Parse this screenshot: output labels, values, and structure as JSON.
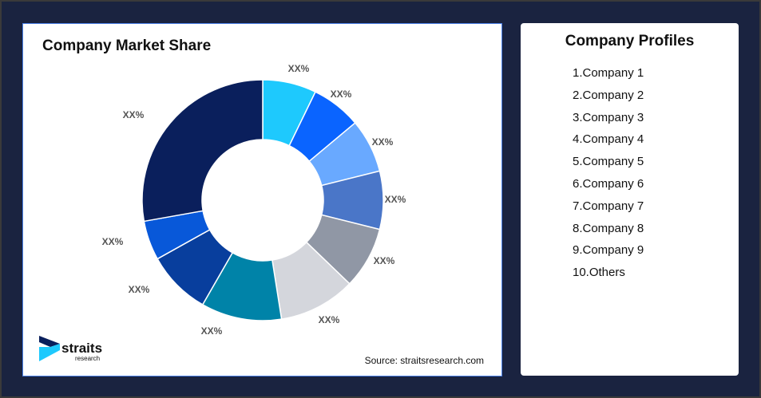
{
  "chart_data": {
    "type": "pie",
    "title": "Company Market Share",
    "donut": true,
    "data_labels": [
      "XX%",
      "XX%",
      "XX%",
      "XX%",
      "XX%",
      "XX%",
      "XX%",
      "XX%",
      "XX%",
      "XX%"
    ],
    "values_estimated_percent": [
      7.2,
      6.7,
      7.2,
      7.8,
      8.3,
      10.3,
      10.8,
      8.6,
      5.3,
      27.8
    ],
    "colors": [
      "#1ec9fd",
      "#0a64ff",
      "#69a9ff",
      "#4a76c8",
      "#9097a5",
      "#d4d6dc",
      "#0083a8",
      "#083e9d",
      "#0858d9",
      "#0a1f5c"
    ],
    "source": "Source: straitsresearch.com"
  },
  "logo": {
    "text": "straits",
    "subtext": "research"
  },
  "profiles": {
    "title": "Company Profiles",
    "items": [
      "1.Company 1",
      "2.Company 2",
      "3.Company 3",
      "4.Company 4",
      "5.Company 5",
      "6.Company 6",
      "7.Company 7",
      "8.Company 8",
      "9.Company 9",
      "10.Others"
    ]
  }
}
